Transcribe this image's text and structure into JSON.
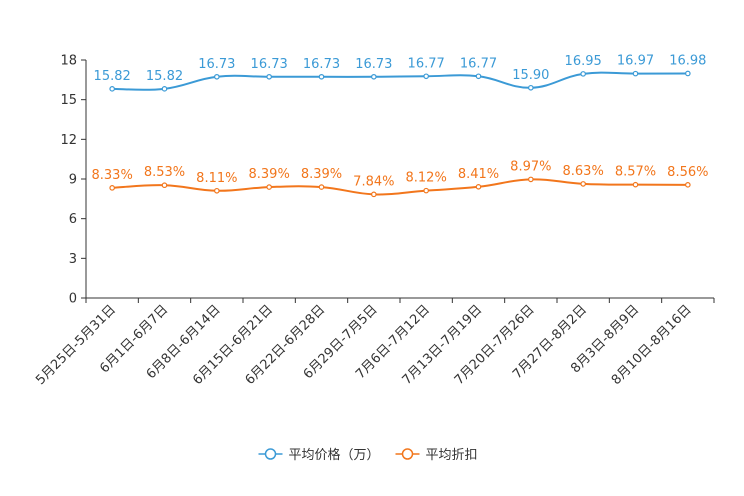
{
  "chart_data": {
    "type": "line",
    "categories": [
      "5月25日-5月31日",
      "6月1日-6月7日",
      "6月8日-6月14日",
      "6月15日-6月21日",
      "6月22日-6月28日",
      "6月29日-7月5日",
      "7月6日-7月12日",
      "7月13日-7月19日",
      "7月20日-7月26日",
      "7月27日-8月2日",
      "8月3日-8月9日",
      "8月10日-8月16日"
    ],
    "ylim": [
      0,
      18
    ],
    "yticks": [
      0,
      3,
      6,
      9,
      12,
      15,
      18
    ],
    "series": [
      {
        "name": "平均价格（万）",
        "color": "#3b9ad6",
        "values": [
          15.82,
          15.82,
          16.73,
          16.73,
          16.73,
          16.73,
          16.77,
          16.77,
          15.9,
          16.95,
          16.97,
          16.98
        ],
        "labels": [
          "15.82",
          "15.82",
          "16.73",
          "16.73",
          "16.73",
          "16.73",
          "16.77",
          "16.77",
          "15.90",
          "16.95",
          "16.97",
          "16.98"
        ]
      },
      {
        "name": "平均折扣",
        "color": "#f2761c",
        "values": [
          8.33,
          8.53,
          8.11,
          8.39,
          8.39,
          7.84,
          8.12,
          8.41,
          8.97,
          8.63,
          8.57,
          8.56
        ],
        "labels": [
          "8.33%",
          "8.53%",
          "8.11%",
          "8.39%",
          "8.39%",
          "7.84%",
          "8.12%",
          "8.41%",
          "8.97%",
          "8.63%",
          "8.57%",
          "8.56%"
        ]
      }
    ],
    "legend_position": "bottom-center"
  }
}
